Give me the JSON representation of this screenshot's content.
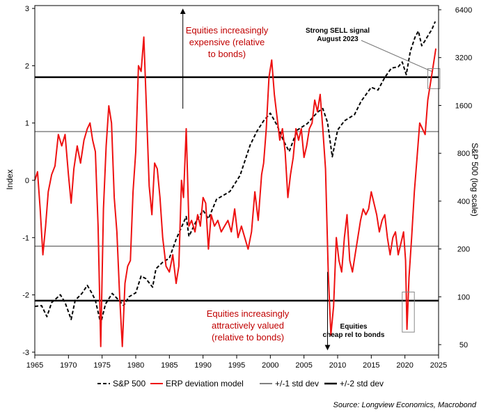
{
  "chart_data": {
    "type": "line",
    "x_range": [
      1965,
      2025
    ],
    "x_ticks": [
      "1965",
      "1970",
      "1975",
      "1980",
      "1985",
      "1990",
      "1995",
      "2000",
      "2005",
      "2010",
      "2015",
      "2020",
      "2025"
    ],
    "y_left_label": "Index",
    "y_left_range": [
      -3.05,
      3.05
    ],
    "y_left_ticks": [
      "3",
      "2",
      "1",
      "0",
      "-1",
      "-2",
      "-3"
    ],
    "y_right_label": "S&P 500 (log scale)",
    "y_right_range": [
      43,
      6800
    ],
    "y_right_ticks": [
      "6400",
      "3200",
      "1600",
      "800",
      "400",
      "200",
      "100",
      "50"
    ],
    "colors": {
      "erp": "#ee1111",
      "spx": "#000000",
      "band": "#000000"
    },
    "series": [
      {
        "name": "S&P 500",
        "axis": "right",
        "style": "dashed",
        "points": [
          [
            1965.0,
            87
          ],
          [
            1966.0,
            88
          ],
          [
            1966.8,
            75
          ],
          [
            1967.5,
            92
          ],
          [
            1968.8,
            103
          ],
          [
            1969.5,
            92
          ],
          [
            1970.4,
            72
          ],
          [
            1971.0,
            95
          ],
          [
            1972.0,
            105
          ],
          [
            1972.8,
            118
          ],
          [
            1973.5,
            105
          ],
          [
            1974.0,
            95
          ],
          [
            1974.8,
            68
          ],
          [
            1975.5,
            90
          ],
          [
            1976.5,
            105
          ],
          [
            1977.5,
            95
          ],
          [
            1978.2,
            88
          ],
          [
            1979.0,
            100
          ],
          [
            1980.0,
            106
          ],
          [
            1980.8,
            135
          ],
          [
            1981.5,
            130
          ],
          [
            1982.5,
            115
          ],
          [
            1983.0,
            150
          ],
          [
            1984.0,
            165
          ],
          [
            1985.0,
            175
          ],
          [
            1986.0,
            230
          ],
          [
            1987.5,
            320
          ],
          [
            1987.9,
            240
          ],
          [
            1989.0,
            300
          ],
          [
            1990.0,
            350
          ],
          [
            1990.8,
            310
          ],
          [
            1992.0,
            410
          ],
          [
            1994.0,
            460
          ],
          [
            1995.5,
            580
          ],
          [
            1997.0,
            900
          ],
          [
            1998.0,
            1100
          ],
          [
            1999.0,
            1280
          ],
          [
            2000.0,
            1430
          ],
          [
            2001.0,
            1200
          ],
          [
            2002.0,
            950
          ],
          [
            2002.8,
            820
          ],
          [
            2004.0,
            1120
          ],
          [
            2005.5,
            1230
          ],
          [
            2007.0,
            1450
          ],
          [
            2007.8,
            1530
          ],
          [
            2008.5,
            1250
          ],
          [
            2009.2,
            760
          ],
          [
            2010.0,
            1120
          ],
          [
            2011.0,
            1280
          ],
          [
            2012.5,
            1400
          ],
          [
            2013.5,
            1700
          ],
          [
            2015.0,
            2080
          ],
          [
            2016.0,
            2000
          ],
          [
            2017.0,
            2400
          ],
          [
            2018.0,
            2750
          ],
          [
            2019.0,
            2800
          ],
          [
            2019.6,
            3000
          ],
          [
            2020.2,
            2500
          ],
          [
            2020.8,
            3500
          ],
          [
            2021.5,
            4300
          ],
          [
            2022.0,
            4700
          ],
          [
            2022.5,
            3800
          ],
          [
            2023.0,
            4100
          ],
          [
            2023.5,
            4450
          ],
          [
            2024.0,
            4800
          ],
          [
            2024.5,
            5400
          ]
        ]
      },
      {
        "name": "ERP deviation model",
        "axis": "left",
        "style": "solid",
        "points": [
          [
            1965.0,
            0.0
          ],
          [
            1965.4,
            0.15
          ],
          [
            1965.8,
            -0.5
          ],
          [
            1966.2,
            -1.3
          ],
          [
            1966.6,
            -0.8
          ],
          [
            1967.0,
            -0.2
          ],
          [
            1967.5,
            0.1
          ],
          [
            1968.0,
            0.25
          ],
          [
            1968.5,
            0.8
          ],
          [
            1969.0,
            0.6
          ],
          [
            1969.5,
            0.8
          ],
          [
            1970.0,
            0.1
          ],
          [
            1970.4,
            -0.4
          ],
          [
            1970.8,
            0.2
          ],
          [
            1971.3,
            0.6
          ],
          [
            1971.8,
            0.3
          ],
          [
            1972.3,
            0.7
          ],
          [
            1972.8,
            0.9
          ],
          [
            1973.2,
            1.0
          ],
          [
            1973.6,
            0.7
          ],
          [
            1974.0,
            0.5
          ],
          [
            1974.4,
            -0.8
          ],
          [
            1974.8,
            -2.9
          ],
          [
            1975.2,
            -0.5
          ],
          [
            1975.6,
            0.6
          ],
          [
            1976.0,
            1.3
          ],
          [
            1976.4,
            1.0
          ],
          [
            1976.8,
            -0.3
          ],
          [
            1977.2,
            -0.9
          ],
          [
            1977.6,
            -2.0
          ],
          [
            1978.0,
            -2.9
          ],
          [
            1978.4,
            -1.8
          ],
          [
            1978.8,
            -1.5
          ],
          [
            1979.2,
            -1.4
          ],
          [
            1979.6,
            -0.2
          ],
          [
            1980.0,
            0.5
          ],
          [
            1980.4,
            2.0
          ],
          [
            1980.8,
            1.9
          ],
          [
            1981.2,
            2.5
          ],
          [
            1981.6,
            1.2
          ],
          [
            1982.0,
            -0.1
          ],
          [
            1982.4,
            -0.6
          ],
          [
            1982.8,
            0.3
          ],
          [
            1983.2,
            0.2
          ],
          [
            1983.6,
            -0.3
          ],
          [
            1984.0,
            -1.0
          ],
          [
            1984.5,
            -1.5
          ],
          [
            1985.0,
            -1.6
          ],
          [
            1985.5,
            -1.3
          ],
          [
            1986.0,
            -1.8
          ],
          [
            1986.4,
            -1.5
          ],
          [
            1986.8,
            0.0
          ],
          [
            1987.1,
            -0.3
          ],
          [
            1987.5,
            0.9
          ],
          [
            1987.9,
            -0.8
          ],
          [
            1988.3,
            -0.7
          ],
          [
            1988.8,
            -0.9
          ],
          [
            1989.2,
            -0.6
          ],
          [
            1989.6,
            -0.8
          ],
          [
            1990.0,
            -0.3
          ],
          [
            1990.4,
            -0.4
          ],
          [
            1990.8,
            -1.2
          ],
          [
            1991.2,
            -0.6
          ],
          [
            1991.7,
            -0.8
          ],
          [
            1992.2,
            -0.7
          ],
          [
            1992.7,
            -0.9
          ],
          [
            1993.2,
            -0.8
          ],
          [
            1993.7,
            -0.7
          ],
          [
            1994.2,
            -0.9
          ],
          [
            1994.7,
            -0.5
          ],
          [
            1995.2,
            -1.0
          ],
          [
            1995.7,
            -0.8
          ],
          [
            1996.2,
            -1.0
          ],
          [
            1996.7,
            -1.2
          ],
          [
            1997.2,
            -0.9
          ],
          [
            1997.7,
            -0.2
          ],
          [
            1998.2,
            -0.7
          ],
          [
            1998.7,
            0.1
          ],
          [
            1999.0,
            0.3
          ],
          [
            1999.4,
            0.9
          ],
          [
            1999.8,
            1.8
          ],
          [
            2000.2,
            2.1
          ],
          [
            2000.6,
            1.5
          ],
          [
            2001.0,
            1.1
          ],
          [
            2001.4,
            0.7
          ],
          [
            2001.8,
            0.9
          ],
          [
            2002.2,
            0.5
          ],
          [
            2002.6,
            -0.3
          ],
          [
            2003.0,
            0.1
          ],
          [
            2003.4,
            0.4
          ],
          [
            2003.8,
            0.9
          ],
          [
            2004.2,
            0.7
          ],
          [
            2004.6,
            0.9
          ],
          [
            2005.0,
            0.4
          ],
          [
            2005.4,
            0.6
          ],
          [
            2005.8,
            0.9
          ],
          [
            2006.2,
            1.0
          ],
          [
            2006.6,
            1.4
          ],
          [
            2007.0,
            1.2
          ],
          [
            2007.4,
            1.5
          ],
          [
            2007.8,
            0.9
          ],
          [
            2008.2,
            0.2
          ],
          [
            2008.6,
            -1.6
          ],
          [
            2009.0,
            -2.7
          ],
          [
            2009.4,
            -2.2
          ],
          [
            2009.8,
            -1.0
          ],
          [
            2010.2,
            -1.4
          ],
          [
            2010.6,
            -1.6
          ],
          [
            2011.0,
            -1.0
          ],
          [
            2011.4,
            -0.6
          ],
          [
            2011.8,
            -1.4
          ],
          [
            2012.2,
            -1.6
          ],
          [
            2012.6,
            -1.3
          ],
          [
            2013.0,
            -1.0
          ],
          [
            2013.4,
            -0.7
          ],
          [
            2013.8,
            -0.5
          ],
          [
            2014.2,
            -0.6
          ],
          [
            2014.6,
            -0.5
          ],
          [
            2015.0,
            -0.2
          ],
          [
            2015.4,
            -0.4
          ],
          [
            2015.8,
            -0.6
          ],
          [
            2016.2,
            -0.9
          ],
          [
            2016.6,
            -0.7
          ],
          [
            2017.0,
            -0.6
          ],
          [
            2017.4,
            -1.0
          ],
          [
            2017.8,
            -1.3
          ],
          [
            2018.2,
            -1.0
          ],
          [
            2018.6,
            -0.9
          ],
          [
            2019.0,
            -1.3
          ],
          [
            2019.4,
            -1.1
          ],
          [
            2019.8,
            -0.9
          ],
          [
            2020.1,
            -1.4
          ],
          [
            2020.3,
            -2.6
          ],
          [
            2020.6,
            -1.7
          ],
          [
            2021.0,
            -1.0
          ],
          [
            2021.4,
            -0.2
          ],
          [
            2021.8,
            0.4
          ],
          [
            2022.2,
            1.0
          ],
          [
            2022.6,
            0.9
          ],
          [
            2023.0,
            0.8
          ],
          [
            2023.4,
            1.4
          ],
          [
            2023.8,
            1.7
          ],
          [
            2024.2,
            2.0
          ],
          [
            2024.6,
            2.3
          ]
        ]
      },
      {
        "name": "+/-1 std dev",
        "axis": "left",
        "style": "thin",
        "values": [
          0.85,
          -1.15
        ]
      },
      {
        "name": "+/-2 std dev",
        "axis": "left",
        "style": "thick",
        "values": [
          1.8,
          -2.1
        ]
      }
    ],
    "legend": [
      "S&P 500",
      "ERP deviation model",
      "+/-1 std dev",
      "+/-2 std dev"
    ],
    "legend_position": "bottom",
    "annotations": {
      "expensive": [
        "Equities increasingly",
        "expensive (relative",
        "to bonds)"
      ],
      "attractive": [
        "Equities increasingly",
        "attractively valued",
        "(relative to bonds)"
      ],
      "sell_signal": [
        "Strong SELL signal",
        "August 2023"
      ],
      "cheap": [
        "Equities",
        "cheap rel to bonds"
      ]
    },
    "source": "Source: Longview Economics, Macrobond"
  }
}
